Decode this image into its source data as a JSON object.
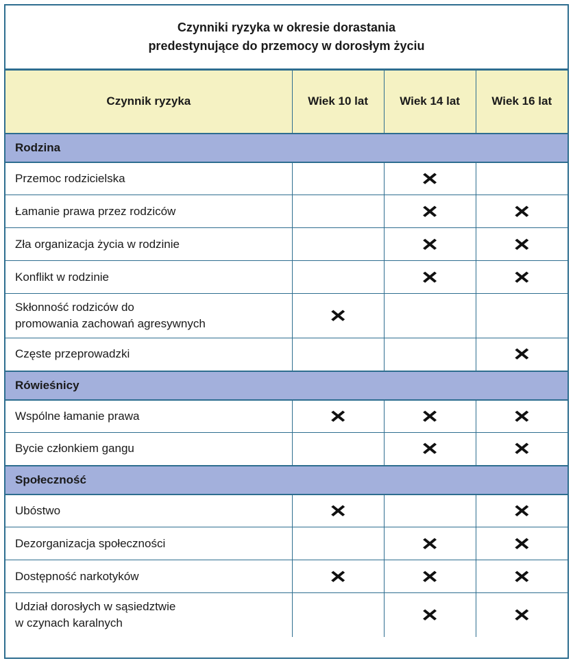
{
  "title": {
    "line1": "Czynniki ryzyka w okresie dorastania",
    "line2": "predestynujące do przemocy w dorosłym życiu"
  },
  "columns": [
    "Czynnik ryzyka",
    "Wiek 10 lat",
    "Wiek 14 lat",
    "Wiek 16 lat"
  ],
  "mark": "×",
  "colors": {
    "border": "#2d6d8f",
    "header_bg": "#f5f2c3",
    "section_bg": "#a3b0dc",
    "row_bg": "#ffffff",
    "mark_color": "#111111"
  },
  "sections": [
    {
      "label": "Rodzina",
      "rows": [
        {
          "factor": "Przemoc rodzicielska",
          "marks": [
            false,
            true,
            false
          ]
        },
        {
          "factor": "Łamanie prawa przez rodziców",
          "marks": [
            false,
            true,
            true
          ]
        },
        {
          "factor": "Zła organizacja życia w rodzinie",
          "marks": [
            false,
            true,
            true
          ]
        },
        {
          "factor": "Konflikt w rodzinie",
          "marks": [
            false,
            true,
            true
          ]
        },
        {
          "factor": "Skłonność rodziców do\npromowania zachowań agresywnych",
          "marks": [
            true,
            false,
            false
          ]
        },
        {
          "factor": "Częste przeprowadzki",
          "marks": [
            false,
            false,
            true
          ]
        }
      ]
    },
    {
      "label": "Rówieśnicy",
      "rows": [
        {
          "factor": "Wspólne łamanie prawa",
          "marks": [
            true,
            true,
            true
          ]
        },
        {
          "factor": "Bycie członkiem gangu",
          "marks": [
            false,
            true,
            true
          ]
        }
      ]
    },
    {
      "label": "Społeczność",
      "rows": [
        {
          "factor": "Ubóstwo",
          "marks": [
            true,
            false,
            true
          ]
        },
        {
          "factor": "Dezorganizacja społeczności",
          "marks": [
            false,
            true,
            true
          ]
        },
        {
          "factor": "Dostępność narkotyków",
          "marks": [
            true,
            true,
            true
          ]
        },
        {
          "factor": "Udział dorosłych w sąsiedztwie\nw czynach karalnych",
          "marks": [
            false,
            true,
            true
          ]
        }
      ]
    }
  ]
}
